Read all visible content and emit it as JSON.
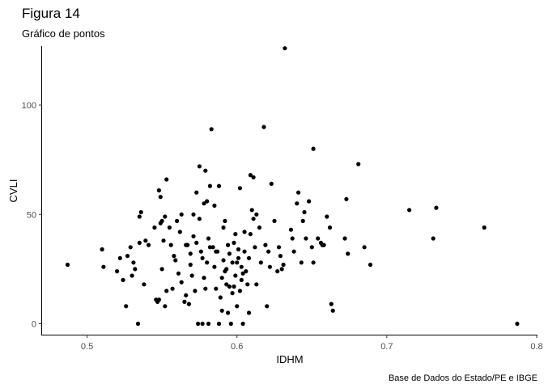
{
  "chart_data": {
    "type": "scatter",
    "title": "Figura 14",
    "subtitle": "Gráfico de pontos",
    "xlabel": "IDHM",
    "ylabel": "CVLI",
    "caption": "Base de Dados do Estado/PE e IBGE",
    "xlim": [
      0.47,
      0.8
    ],
    "ylim": [
      -5,
      127
    ],
    "x_ticks": [
      0.5,
      0.6,
      0.7,
      0.8
    ],
    "x_tick_labels": [
      "0.5",
      "0.6",
      "0.7",
      "0.8"
    ],
    "y_ticks": [
      0,
      50,
      100
    ],
    "y_tick_labels": [
      "0",
      "50",
      "100"
    ],
    "grid": false,
    "point_color": "#000000",
    "points": [
      [
        0.487,
        27
      ],
      [
        0.51,
        34
      ],
      [
        0.511,
        26
      ],
      [
        0.52,
        24
      ],
      [
        0.522,
        30
      ],
      [
        0.524,
        20
      ],
      [
        0.526,
        8
      ],
      [
        0.527,
        31
      ],
      [
        0.529,
        35
      ],
      [
        0.53,
        22
      ],
      [
        0.531,
        28
      ],
      [
        0.532,
        25
      ],
      [
        0.534,
        0
      ],
      [
        0.535,
        37
      ],
      [
        0.535,
        49
      ],
      [
        0.536,
        51
      ],
      [
        0.538,
        18
      ],
      [
        0.539,
        38
      ],
      [
        0.541,
        36
      ],
      [
        0.545,
        44
      ],
      [
        0.546,
        11
      ],
      [
        0.547,
        10
      ],
      [
        0.548,
        61
      ],
      [
        0.548,
        11
      ],
      [
        0.549,
        58
      ],
      [
        0.549,
        46
      ],
      [
        0.55,
        25
      ],
      [
        0.55,
        47
      ],
      [
        0.551,
        38
      ],
      [
        0.552,
        8
      ],
      [
        0.552,
        49
      ],
      [
        0.553,
        66
      ],
      [
        0.553,
        15
      ],
      [
        0.555,
        44
      ],
      [
        0.556,
        36
      ],
      [
        0.557,
        16
      ],
      [
        0.558,
        31
      ],
      [
        0.559,
        29
      ],
      [
        0.56,
        47
      ],
      [
        0.561,
        23
      ],
      [
        0.562,
        42
      ],
      [
        0.563,
        50
      ],
      [
        0.563,
        19
      ],
      [
        0.565,
        10
      ],
      [
        0.566,
        13
      ],
      [
        0.566,
        36
      ],
      [
        0.567,
        36
      ],
      [
        0.568,
        9
      ],
      [
        0.569,
        32
      ],
      [
        0.569,
        27
      ],
      [
        0.57,
        22
      ],
      [
        0.571,
        40
      ],
      [
        0.571,
        50
      ],
      [
        0.572,
        15
      ],
      [
        0.573,
        60
      ],
      [
        0.573,
        37
      ],
      [
        0.574,
        0
      ],
      [
        0.575,
        72
      ],
      [
        0.575,
        48
      ],
      [
        0.576,
        33
      ],
      [
        0.577,
        0
      ],
      [
        0.577,
        30
      ],
      [
        0.578,
        55
      ],
      [
        0.578,
        21
      ],
      [
        0.579,
        70
      ],
      [
        0.579,
        16
      ],
      [
        0.58,
        56
      ],
      [
        0.58,
        28
      ],
      [
        0.581,
        39
      ],
      [
        0.581,
        0
      ],
      [
        0.582,
        35
      ],
      [
        0.582,
        63
      ],
      [
        0.583,
        89
      ],
      [
        0.584,
        35
      ],
      [
        0.585,
        54
      ],
      [
        0.585,
        26
      ],
      [
        0.586,
        16
      ],
      [
        0.586,
        33
      ],
      [
        0.587,
        33
      ],
      [
        0.588,
        0
      ],
      [
        0.588,
        63
      ],
      [
        0.589,
        12
      ],
      [
        0.59,
        6
      ],
      [
        0.59,
        21
      ],
      [
        0.591,
        44
      ],
      [
        0.591,
        29
      ],
      [
        0.592,
        47
      ],
      [
        0.592,
        24
      ],
      [
        0.593,
        18
      ],
      [
        0.593,
        25
      ],
      [
        0.594,
        36
      ],
      [
        0.594,
        5
      ],
      [
        0.595,
        32
      ],
      [
        0.595,
        17
      ],
      [
        0.596,
        0
      ],
      [
        0.597,
        28
      ],
      [
        0.597,
        14
      ],
      [
        0.598,
        37
      ],
      [
        0.598,
        17
      ],
      [
        0.599,
        41
      ],
      [
        0.599,
        22
      ],
      [
        0.6,
        28
      ],
      [
        0.6,
        8
      ],
      [
        0.601,
        34
      ],
      [
        0.601,
        30
      ],
      [
        0.602,
        62
      ],
      [
        0.602,
        15
      ],
      [
        0.603,
        20
      ],
      [
        0.603,
        26
      ],
      [
        0.604,
        23
      ],
      [
        0.604,
        0
      ],
      [
        0.605,
        42
      ],
      [
        0.605,
        33
      ],
      [
        0.606,
        24
      ],
      [
        0.607,
        18
      ],
      [
        0.608,
        30
      ],
      [
        0.608,
        5
      ],
      [
        0.609,
        68
      ],
      [
        0.609,
        41
      ],
      [
        0.61,
        52
      ],
      [
        0.611,
        67
      ],
      [
        0.611,
        48
      ],
      [
        0.612,
        35
      ],
      [
        0.613,
        50
      ],
      [
        0.613,
        18
      ],
      [
        0.615,
        44
      ],
      [
        0.616,
        28
      ],
      [
        0.618,
        90
      ],
      [
        0.619,
        36
      ],
      [
        0.62,
        8
      ],
      [
        0.621,
        33
      ],
      [
        0.622,
        26
      ],
      [
        0.623,
        64
      ],
      [
        0.625,
        47
      ],
      [
        0.627,
        24
      ],
      [
        0.628,
        35
      ],
      [
        0.629,
        31
      ],
      [
        0.63,
        25
      ],
      [
        0.631,
        27
      ],
      [
        0.632,
        126
      ],
      [
        0.636,
        43
      ],
      [
        0.637,
        39
      ],
      [
        0.638,
        33
      ],
      [
        0.64,
        55
      ],
      [
        0.641,
        60
      ],
      [
        0.643,
        28
      ],
      [
        0.644,
        47
      ],
      [
        0.645,
        51
      ],
      [
        0.646,
        39
      ],
      [
        0.648,
        56
      ],
      [
        0.65,
        35
      ],
      [
        0.651,
        80
      ],
      [
        0.651,
        28
      ],
      [
        0.654,
        39
      ],
      [
        0.656,
        37
      ],
      [
        0.657,
        36
      ],
      [
        0.658,
        36
      ],
      [
        0.66,
        49
      ],
      [
        0.662,
        44
      ],
      [
        0.663,
        9
      ],
      [
        0.664,
        6
      ],
      [
        0.672,
        39
      ],
      [
        0.673,
        57
      ],
      [
        0.674,
        32
      ],
      [
        0.681,
        73
      ],
      [
        0.685,
        35
      ],
      [
        0.689,
        27
      ],
      [
        0.715,
        52
      ],
      [
        0.731,
        39
      ],
      [
        0.733,
        53
      ],
      [
        0.765,
        44
      ],
      [
        0.787,
        0
      ]
    ]
  }
}
